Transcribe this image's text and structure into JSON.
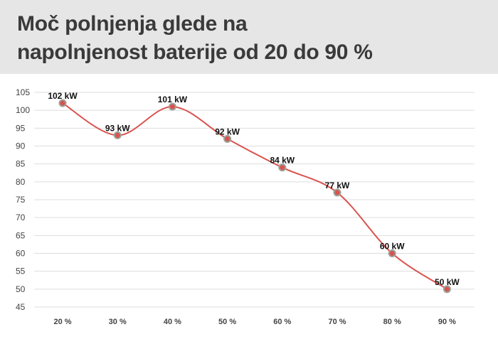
{
  "title_line1": "Moč polnjenja glede na",
  "title_line2": "napolnjenost baterije od 20 do 90 %",
  "colors": {
    "header_bg": "#e6e6e6",
    "line": "#d9534f",
    "marker_fill": "#d9534f",
    "marker_stroke": "#9aa39a",
    "grid": "#dddddd"
  },
  "chart_data": {
    "type": "line",
    "categories": [
      "20 %",
      "30 %",
      "40 %",
      "50 %",
      "60 %",
      "70 %",
      "80 %",
      "90 %"
    ],
    "series": [
      {
        "values": [
          102,
          93,
          101,
          92,
          84,
          77,
          60,
          50
        ],
        "labels": [
          "102 kW",
          "93 kW",
          "101 kW",
          "92 kW",
          "84 kW",
          "77 kW",
          "60 kW",
          "50 kW"
        ]
      }
    ],
    "yticks": [
      45,
      50,
      55,
      60,
      65,
      70,
      75,
      80,
      85,
      90,
      95,
      100,
      105
    ],
    "ylim": [
      45,
      105
    ],
    "grid": true,
    "smooth": true
  }
}
